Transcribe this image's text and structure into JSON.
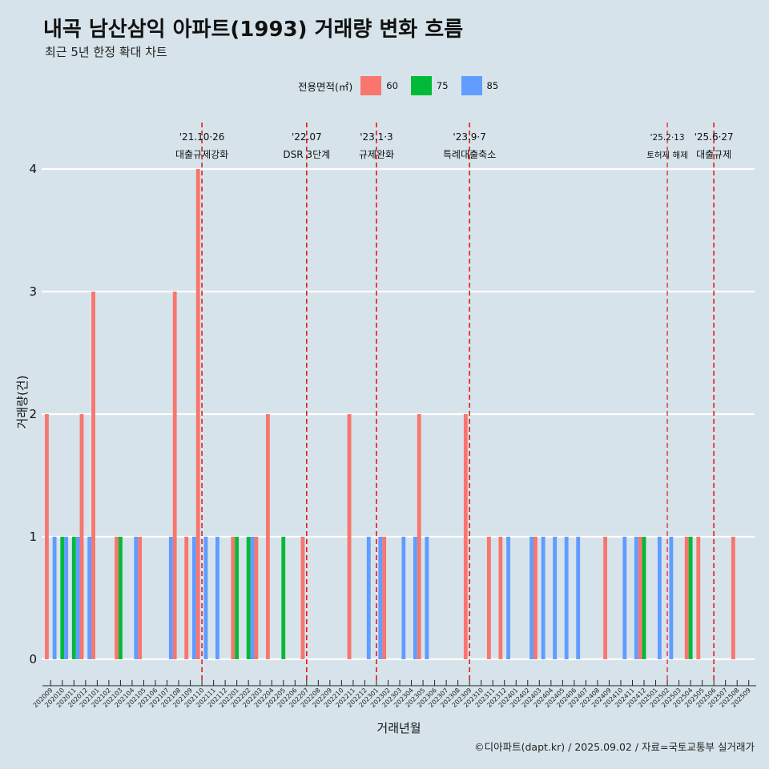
{
  "title": "내곡 남산삼익 아파트(1993) 거래량 변화 흐름",
  "subtitle": "최근 5년 한정 확대 차트",
  "caption": "©디아파트(dapt.kr) / 2025.09.02 / 자료=국토교통부 실거래가",
  "colors": {
    "background": "#d6e3ea",
    "s60": "#f8766d",
    "s75": "#00ba38",
    "s85": "#619cff",
    "event_line": "#e41a1c",
    "grid": "#ffffff"
  },
  "chart_data": {
    "type": "bar",
    "xlabel": "거래년월",
    "ylabel": "거래량(건)",
    "ylim": [
      0,
      4
    ],
    "yticks": [
      0,
      1,
      2,
      3,
      4
    ],
    "grid": true,
    "legend": {
      "title": "전용면적(㎡)",
      "position": "top"
    },
    "categories": [
      "202009",
      "202010",
      "202011",
      "202012",
      "202101",
      "202102",
      "202103",
      "202104",
      "202105",
      "202106",
      "202107",
      "202108",
      "202109",
      "202110",
      "202111",
      "202112",
      "202201",
      "202202",
      "202203",
      "202204",
      "202205",
      "202206",
      "202207",
      "202208",
      "202209",
      "202210",
      "202211",
      "202212",
      "202301",
      "202302",
      "202303",
      "202304",
      "202305",
      "202306",
      "202307",
      "202308",
      "202309",
      "202310",
      "202311",
      "202312",
      "202401",
      "202402",
      "202403",
      "202404",
      "202405",
      "202406",
      "202407",
      "202408",
      "202409",
      "202410",
      "202411",
      "202412",
      "202501",
      "202502",
      "202503",
      "202504",
      "202505",
      "202506",
      "202507",
      "202508",
      "202509"
    ],
    "series": [
      {
        "name": "60",
        "color": "#f8766d",
        "values": [
          2,
          0,
          0,
          2,
          3,
          0,
          1,
          0,
          1,
          0,
          0,
          3,
          1,
          4,
          0,
          0,
          1,
          0,
          1,
          2,
          0,
          0,
          1,
          0,
          0,
          0,
          2,
          0,
          0,
          1,
          0,
          0,
          2,
          0,
          0,
          0,
          2,
          0,
          1,
          1,
          0,
          0,
          1,
          0,
          0,
          0,
          0,
          0,
          1,
          0,
          0,
          1,
          0,
          0,
          0,
          1,
          1,
          0,
          0,
          1,
          0
        ]
      },
      {
        "name": "75",
        "color": "#00ba38",
        "values": [
          0,
          1,
          1,
          0,
          0,
          0,
          1,
          0,
          0,
          0,
          0,
          0,
          0,
          0,
          0,
          0,
          1,
          1,
          0,
          0,
          1,
          0,
          0,
          0,
          0,
          0,
          0,
          0,
          0,
          0,
          0,
          0,
          0,
          0,
          0,
          0,
          0,
          0,
          0,
          0,
          0,
          0,
          0,
          0,
          0,
          0,
          0,
          0,
          0,
          0,
          0,
          1,
          0,
          0,
          0,
          1,
          0,
          0,
          0,
          0,
          0
        ]
      },
      {
        "name": "85",
        "color": "#619cff",
        "values": [
          1,
          1,
          1,
          1,
          0,
          0,
          0,
          1,
          0,
          0,
          1,
          0,
          1,
          1,
          1,
          0,
          0,
          1,
          0,
          0,
          0,
          0,
          0,
          0,
          0,
          0,
          0,
          1,
          1,
          0,
          1,
          1,
          1,
          0,
          0,
          0,
          0,
          0,
          0,
          1,
          0,
          1,
          1,
          1,
          1,
          1,
          0,
          0,
          0,
          1,
          1,
          0,
          1,
          1,
          0,
          0,
          0,
          0,
          0,
          0,
          0
        ]
      }
    ],
    "events": [
      {
        "date": "202110",
        "label_date": "'21.10·26",
        "label": "대출규제강화"
      },
      {
        "date": "202207",
        "label_date": "'22.07",
        "label": "DSR 3단계"
      },
      {
        "date": "202301",
        "label_date": "'23.1·3",
        "label": "규제완화"
      },
      {
        "date": "202309",
        "label_date": "'23.9·7",
        "label": "특례대출축소"
      },
      {
        "date": "202502",
        "label_date": "'25.2·13",
        "label": "토허제 해제"
      },
      {
        "date": "202506",
        "label_date": "'25.6·27",
        "label": "대출규제"
      }
    ]
  }
}
